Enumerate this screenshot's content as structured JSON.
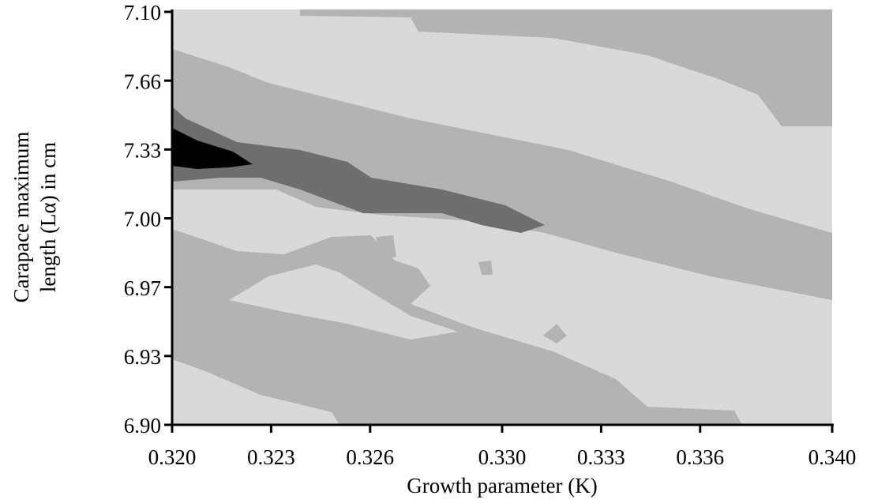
{
  "chart_data": {
    "type": "contour",
    "x_label": "Growth parameter (K)",
    "y_label": [
      "Carapace maximum",
      "length (Lα) in cm"
    ],
    "xlim": [
      0.32,
      0.34
    ],
    "xticks": [
      {
        "value": 0.32,
        "label": "0.320"
      },
      {
        "value": 0.323,
        "label": "0.323"
      },
      {
        "value": 0.326,
        "label": "0.326"
      },
      {
        "value": 0.33,
        "label": "0.330"
      },
      {
        "value": 0.333,
        "label": "0.333"
      },
      {
        "value": 0.336,
        "label": "0.336"
      },
      {
        "value": 0.34,
        "label": "0.340"
      }
    ],
    "y_categories": [
      "6.90",
      "6.93",
      "6.97",
      "7.00",
      "7.33",
      "7.66",
      "7.10"
    ]
  }
}
